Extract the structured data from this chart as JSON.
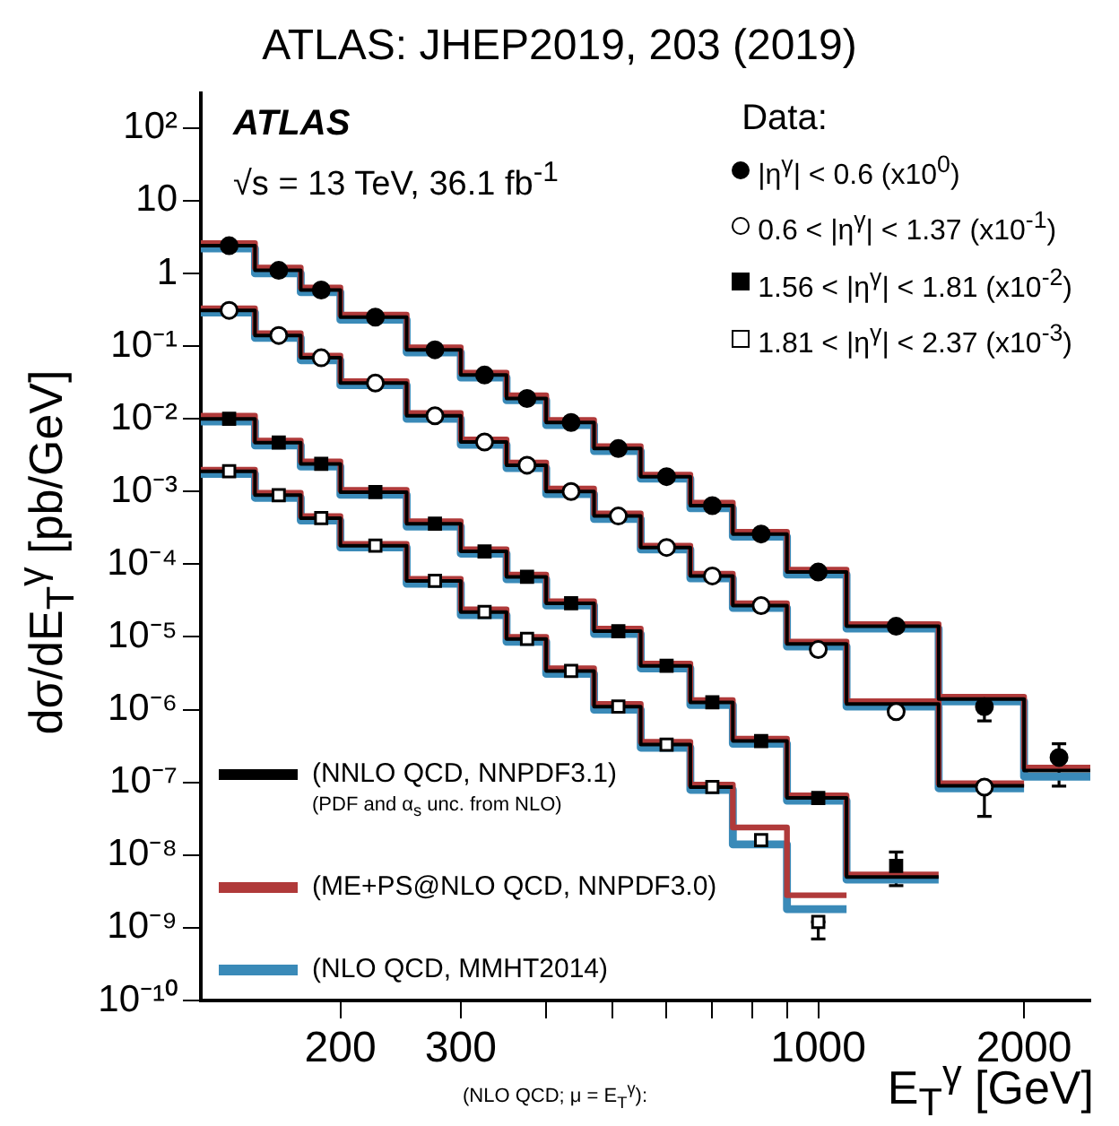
{
  "chart_data": {
    "type": "scatter",
    "title": "ATLAS: JHEP2019, 203 (2019)",
    "xlabel": "E$_{T}$$^{γ}$ [GeV]",
    "ylabel": "dσ/dE$_{T}$$^{γ}$ [pb/GeV]",
    "legend_title": "Data:",
    "legend": "bottom left",
    "log": "xy",
    "xlim": [
      125,
      2500
    ],
    "ylim": [
      1e-10,
      300
    ],
    "xticks": [
      200,
      300,
      {
        "value": 400,
        "label": null
      },
      {
        "value": 500,
        "label": null
      },
      {
        "value": 600,
        "label": null
      },
      {
        "value": 700,
        "label": null
      },
      {
        "value": 800,
        "label": null
      },
      {
        "value": 900,
        "label": null
      },
      1000,
      2000
    ],
    "yticks": [
      {
        "value": 1e-10,
        "label": "10⁻¹⁰"
      },
      {
        "value": 1e-09,
        "label": "10⁻⁹"
      },
      {
        "value": 1e-08,
        "label": "10⁻⁸"
      },
      {
        "value": 1e-07,
        "label": "10⁻⁷"
      },
      {
        "value": 1e-06,
        "label": "10⁻⁶"
      },
      {
        "value": 1e-05,
        "label": "10⁻⁵"
      },
      {
        "value": 0.0001,
        "label": "10⁻⁴"
      },
      {
        "value": 0.001,
        "label": "10⁻³"
      },
      {
        "value": 0.01,
        "label": "10⁻²"
      },
      {
        "value": 0.1,
        "label": "10⁻¹"
      },
      1,
      10,
      {
        "value": 100,
        "label": "10²"
      }
    ],
    "annotations": [
      "ATLAS",
      "√s = 13 TeV, 36.1 fb$^{-1}$",
      "(PDF and α$_{s}$ unc. from NLO)",
      "(NLO QCD; μ = E$_{T}$$^{γ}$):"
    ],
    "series": [
      {
        "name": "|η$^{γ}$| < 0.6 (x10$^{0}$)",
        "color": "#000000",
        "marker": "circle",
        "x": [
          137.5,
          162.5,
          187.5,
          225,
          275,
          325,
          375,
          435,
          510,
          600,
          700,
          825,
          1000,
          1300,
          1750,
          2250
        ],
        "values": [
          2.4,
          1.1,
          0.59,
          0.25,
          0.089,
          0.04,
          0.019,
          0.0089,
          0.0039,
          0.0016,
          0.00064,
          0.00026,
          7.8e-05,
          1.4e-05,
          1.1e-06,
          2.2e-07
        ],
        "errors": [
          null,
          null,
          null,
          null,
          null,
          null,
          null,
          null,
          null,
          null,
          null,
          null,
          null,
          null,
          [
            7e-07,
            1.1e-06
          ],
          [
            8.9e-08,
            3.4e-07
          ]
        ]
      },
      {
        "name": "0.6 < |η$^{γ}$| < 1.37 (x10$^{-1}$)",
        "color": "#ffffff",
        "marker": "circle",
        "x": [
          137.5,
          162.5,
          187.5,
          225,
          275,
          325,
          375,
          435,
          510,
          600,
          700,
          825,
          1000,
          1300,
          1750
        ],
        "values": [
          0.31,
          0.14,
          0.069,
          0.031,
          0.011,
          0.0048,
          0.0023,
          0.001,
          0.00046,
          0.00017,
          6.9e-05,
          2.7e-05,
          6.7e-06,
          9.4e-07,
          8.6e-08
        ],
        "errors": [
          null,
          null,
          null,
          null,
          null,
          null,
          null,
          null,
          null,
          null,
          null,
          null,
          null,
          null,
          [
            3.4e-08,
            8.6e-08
          ]
        ]
      },
      {
        "name": "1.56 < |η$^{γ}$| < 1.81 (x10$^{-2}$)",
        "color": "#000000",
        "marker": "square",
        "x": [
          137.5,
          162.5,
          187.5,
          225,
          275,
          325,
          375,
          435,
          510,
          600,
          700,
          825,
          1000,
          1300
        ],
        "values": [
          0.01,
          0.0047,
          0.0024,
          0.00098,
          0.00036,
          0.00015,
          6.7e-05,
          2.9e-05,
          1.2e-05,
          4e-06,
          1.26e-06,
          3.7e-07,
          6.1e-08,
          7.1e-09
        ],
        "errors": [
          null,
          null,
          null,
          null,
          null,
          null,
          null,
          null,
          null,
          null,
          null,
          null,
          null,
          [
            3.8e-09,
            1.1e-08
          ]
        ]
      },
      {
        "name": "1.81 < |η$^{γ}$| < 2.37 (x10$^{-3}$)",
        "color": "#ffffff",
        "marker": "square",
        "x": [
          137.5,
          162.5,
          187.5,
          225,
          275,
          325,
          375,
          435,
          510,
          600,
          700,
          825,
          1000
        ],
        "values": [
          0.0019,
          0.00089,
          0.00043,
          0.00018,
          5.9e-05,
          2.2e-05,
          9.4e-06,
          3.4e-06,
          1.1e-06,
          3.3e-07,
          8.6e-08,
          1.6e-08,
          1.2e-09
        ],
        "errors": [
          null,
          null,
          null,
          null,
          null,
          null,
          null,
          null,
          null,
          null,
          null,
          null,
          [
            7e-10,
            1.2e-09
          ]
        ]
      },
      {
        "type": "step",
        "name": "(NNLO QCD, NNPDF3.1)",
        "color": "#000000",
        "x": [
          125,
          150,
          175,
          200,
          250,
          300,
          350,
          400,
          470,
          550,
          650,
          750,
          900,
          1100,
          1500,
          2000,
          2500,
          null,
          125,
          150,
          175,
          200,
          250,
          300,
          350,
          400,
          470,
          550,
          650,
          750,
          900,
          1100,
          1500,
          2000,
          null,
          125,
          150,
          175,
          200,
          250,
          300,
          350,
          400,
          470,
          550,
          650,
          750,
          900,
          1100,
          1500,
          null,
          125,
          150,
          175,
          200,
          250,
          300,
          350,
          400,
          470,
          550,
          650,
          750
        ],
        "values": [
          2.4,
          1.1,
          0.59,
          0.25,
          0.089,
          0.04,
          0.019,
          0.0089,
          0.0039,
          0.0016,
          0.00064,
          0.00026,
          7.8e-05,
          1.4e-05,
          1.4e-06,
          1.45e-07,
          1.45e-07,
          null,
          0.31,
          0.14,
          0.069,
          0.031,
          0.011,
          0.0048,
          0.0023,
          0.001,
          0.00046,
          0.00017,
          6.9e-05,
          2.7e-05,
          8e-06,
          1.2e-06,
          9e-08,
          9e-08,
          null,
          0.01,
          0.0047,
          0.0024,
          0.00098,
          0.00036,
          0.00015,
          6.7e-05,
          2.9e-05,
          1.2e-05,
          4e-06,
          1.26e-06,
          3.7e-07,
          6.1e-08,
          5e-09,
          5e-09,
          null,
          0.0019,
          0.00089,
          0.00043,
          0.00018,
          5.9e-05,
          2.2e-05,
          9.4e-06,
          3.4e-06,
          1.1e-06,
          3.3e-07,
          8.6e-08,
          8.6e-08
        ]
      },
      {
        "type": "step",
        "name": "(ME+PS@NLO QCD, NNPDF3.0)",
        "color": "#b03a3a",
        "x": [
          125,
          150,
          175,
          200,
          250,
          300,
          350,
          400,
          470,
          550,
          650,
          750,
          900,
          1100,
          1500,
          2000,
          2500,
          null,
          125,
          150,
          175,
          200,
          250,
          300,
          350,
          400,
          470,
          550,
          650,
          750,
          900,
          1100,
          1500,
          2000,
          null,
          125,
          150,
          175,
          200,
          250,
          300,
          350,
          400,
          470,
          550,
          650,
          750,
          900,
          1100,
          1500,
          null,
          125,
          150,
          175,
          200,
          250,
          300,
          350,
          400,
          470,
          550,
          650,
          750,
          900,
          1100
        ],
        "values": [
          2.6,
          1.2,
          0.64,
          0.27,
          0.096,
          0.043,
          0.021,
          0.0096,
          0.0042,
          0.0017,
          0.0007,
          0.00028,
          8.4e-05,
          1.5e-05,
          1.5e-06,
          1.6e-07,
          1.6e-07,
          null,
          0.33,
          0.15,
          0.074,
          0.033,
          0.012,
          0.0052,
          0.0025,
          0.0011,
          0.0005,
          0.00018,
          7.4e-05,
          2.9e-05,
          8.6e-06,
          1.3e-06,
          9.7e-08,
          9.7e-08,
          null,
          0.011,
          0.005,
          0.0026,
          0.00105,
          0.00039,
          0.00016,
          7.2e-05,
          3.1e-05,
          1.3e-05,
          4.3e-06,
          1.35e-06,
          4e-07,
          6.6e-08,
          5.4e-09,
          5.4e-09,
          null,
          0.002,
          0.00096,
          0.00046,
          0.00019,
          6.3e-05,
          2.4e-05,
          1e-05,
          3.7e-06,
          1.2e-06,
          3.6e-07,
          9.3e-08,
          2.4e-08,
          2.8e-09,
          2.8e-09
        ]
      },
      {
        "type": "step",
        "name": "(NLO QCD, MMHT2014)",
        "color": "#3a8ab8",
        "x": [
          125,
          150,
          175,
          200,
          250,
          300,
          350,
          400,
          470,
          550,
          650,
          750,
          900,
          1100,
          1500,
          2000,
          2500,
          null,
          125,
          150,
          175,
          200,
          250,
          300,
          350,
          400,
          470,
          550,
          650,
          750,
          900,
          1100,
          1500,
          2000,
          null,
          125,
          150,
          175,
          200,
          250,
          300,
          350,
          400,
          470,
          550,
          650,
          750,
          900,
          1100,
          1500,
          null,
          125,
          150,
          175,
          200,
          250,
          300,
          350,
          400,
          470,
          550,
          650,
          750,
          900,
          1100
        ],
        "values": [
          2.2,
          1.0,
          0.55,
          0.23,
          0.082,
          0.037,
          0.018,
          0.0082,
          0.0036,
          0.0015,
          0.00059,
          0.00024,
          7.2e-05,
          1.3e-05,
          1.3e-06,
          1.2e-07,
          1.2e-07,
          null,
          0.29,
          0.13,
          0.064,
          0.029,
          0.01,
          0.0044,
          0.0021,
          0.00092,
          0.00042,
          0.00016,
          6.4e-05,
          2.5e-05,
          7.4e-06,
          1.1e-06,
          8.3e-08,
          8.3e-08,
          null,
          0.0092,
          0.0043,
          0.0022,
          0.0009,
          0.00033,
          0.00014,
          6.2e-05,
          2.7e-05,
          1.1e-05,
          3.7e-06,
          1.16e-06,
          3.4e-07,
          5.6e-08,
          4.6e-09,
          4.6e-09,
          null,
          0.00175,
          0.00082,
          0.0004,
          0.00017,
          5.4e-05,
          2e-05,
          8.6e-06,
          3.1e-06,
          1e-06,
          3e-07,
          7.9e-08,
          1.4e-08,
          1.8e-09,
          1.8e-09
        ]
      }
    ]
  }
}
